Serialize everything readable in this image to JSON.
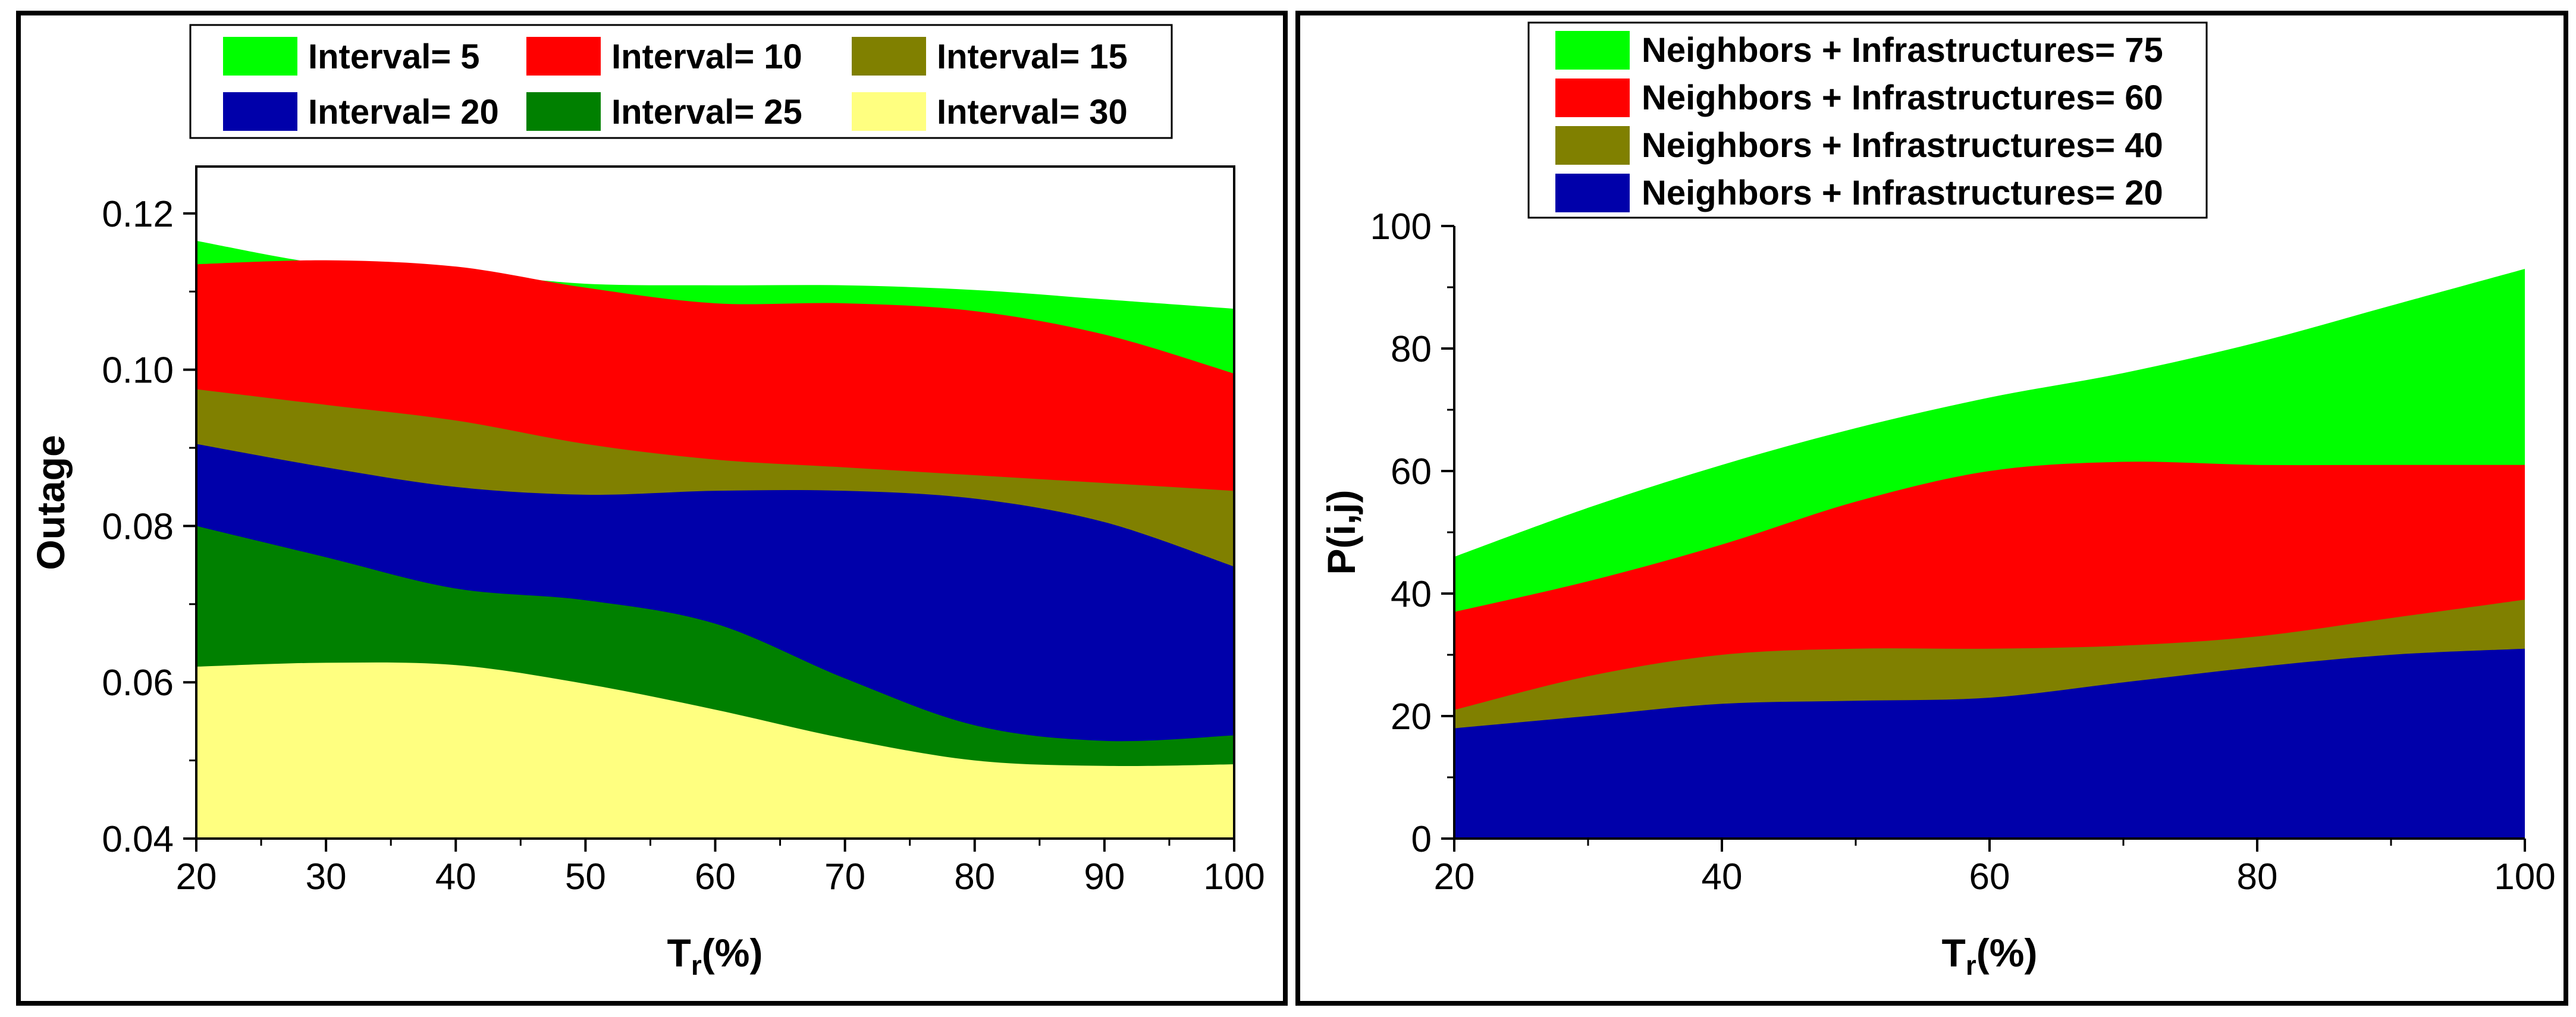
{
  "chart_data": [
    {
      "type": "area",
      "id": "left",
      "xlabel_main": "T",
      "xlabel_sub": "r",
      "xlabel_tail": "(%)",
      "ylabel": "Outage",
      "xlim": [
        20,
        100
      ],
      "ylim": [
        0.04,
        0.126
      ],
      "xticks": [
        20,
        30,
        40,
        50,
        60,
        70,
        80,
        90,
        100
      ],
      "yticks": [
        0.04,
        0.06,
        0.08,
        0.1,
        0.12
      ],
      "ytick_labels": [
        "0.04",
        "0.06",
        "0.08",
        "0.10",
        "0.12"
      ],
      "legend_position": "top",
      "series": [
        {
          "name": "Interval= 5",
          "color": "#00ff00",
          "x": [
            20,
            30,
            40,
            50,
            60,
            70,
            80,
            90,
            100
          ],
          "values": [
            0.1165,
            0.1135,
            0.1125,
            0.111,
            0.1108,
            0.1108,
            0.1102,
            0.109,
            0.1078
          ]
        },
        {
          "name": "Interval= 10",
          "color": "#ff0000",
          "x": [
            20,
            30,
            40,
            50,
            60,
            70,
            80,
            90,
            100
          ],
          "values": [
            0.1135,
            0.114,
            0.1132,
            0.1105,
            0.1085,
            0.1085,
            0.1075,
            0.1045,
            0.0995
          ]
        },
        {
          "name": "Interval= 15",
          "color": "#808000",
          "x": [
            20,
            30,
            40,
            50,
            60,
            70,
            80,
            90,
            100
          ],
          "values": [
            0.0975,
            0.0955,
            0.0935,
            0.0905,
            0.0885,
            0.0875,
            0.0865,
            0.0855,
            0.0845
          ]
        },
        {
          "name": "Interval= 20",
          "color": "#0000aa",
          "x": [
            20,
            30,
            40,
            50,
            60,
            70,
            80,
            90,
            100
          ],
          "values": [
            0.0905,
            0.0875,
            0.085,
            0.084,
            0.0845,
            0.0845,
            0.0835,
            0.0805,
            0.0748
          ]
        },
        {
          "name": "Interval= 25",
          "color": "#008000",
          "x": [
            20,
            30,
            40,
            50,
            60,
            70,
            80,
            90,
            100
          ],
          "values": [
            0.08,
            0.076,
            0.072,
            0.0705,
            0.0675,
            0.0605,
            0.0545,
            0.0525,
            0.0532
          ]
        },
        {
          "name": "Interval= 30",
          "color": "#ffff80",
          "x": [
            20,
            30,
            40,
            50,
            60,
            70,
            80,
            90,
            100
          ],
          "values": [
            0.062,
            0.0625,
            0.0622,
            0.0598,
            0.0565,
            0.0528,
            0.05,
            0.0493,
            0.0495
          ]
        }
      ]
    },
    {
      "type": "area",
      "id": "right",
      "xlabel_main": "T",
      "xlabel_sub": "r",
      "xlabel_tail": "(%)",
      "ylabel": "P(i,j)",
      "xlim": [
        20,
        100
      ],
      "ylim": [
        0,
        100
      ],
      "xticks": [
        20,
        40,
        60,
        80,
        100
      ],
      "yticks": [
        0,
        20,
        40,
        60,
        80,
        100
      ],
      "ytick_labels": [
        "0",
        "20",
        "40",
        "60",
        "80",
        "100"
      ],
      "legend_position": "top",
      "series": [
        {
          "name": "Neighbors + Infrastructures= 75",
          "color": "#00ff00",
          "x": [
            20,
            30,
            40,
            50,
            60,
            70,
            80,
            90,
            100
          ],
          "values": [
            46,
            54,
            61,
            67,
            72,
            76,
            81,
            87,
            93
          ]
        },
        {
          "name": "Neighbors + Infrastructures= 60",
          "color": "#ff0000",
          "x": [
            20,
            30,
            40,
            50,
            60,
            70,
            80,
            90,
            100
          ],
          "values": [
            37,
            42,
            48,
            55,
            60,
            61.5,
            61,
            61,
            61
          ]
        },
        {
          "name": "Neighbors + Infrastructures= 40",
          "color": "#808000",
          "x": [
            20,
            30,
            40,
            50,
            60,
            70,
            80,
            90,
            100
          ],
          "values": [
            21,
            26.5,
            30,
            31,
            31,
            31.5,
            33,
            36,
            39
          ]
        },
        {
          "name": "Neighbors + Infrastructures= 20",
          "color": "#0000aa",
          "x": [
            20,
            30,
            40,
            50,
            60,
            70,
            80,
            90,
            100
          ],
          "values": [
            18,
            20,
            22,
            22.5,
            23,
            25.5,
            28,
            30,
            31
          ]
        }
      ]
    }
  ]
}
